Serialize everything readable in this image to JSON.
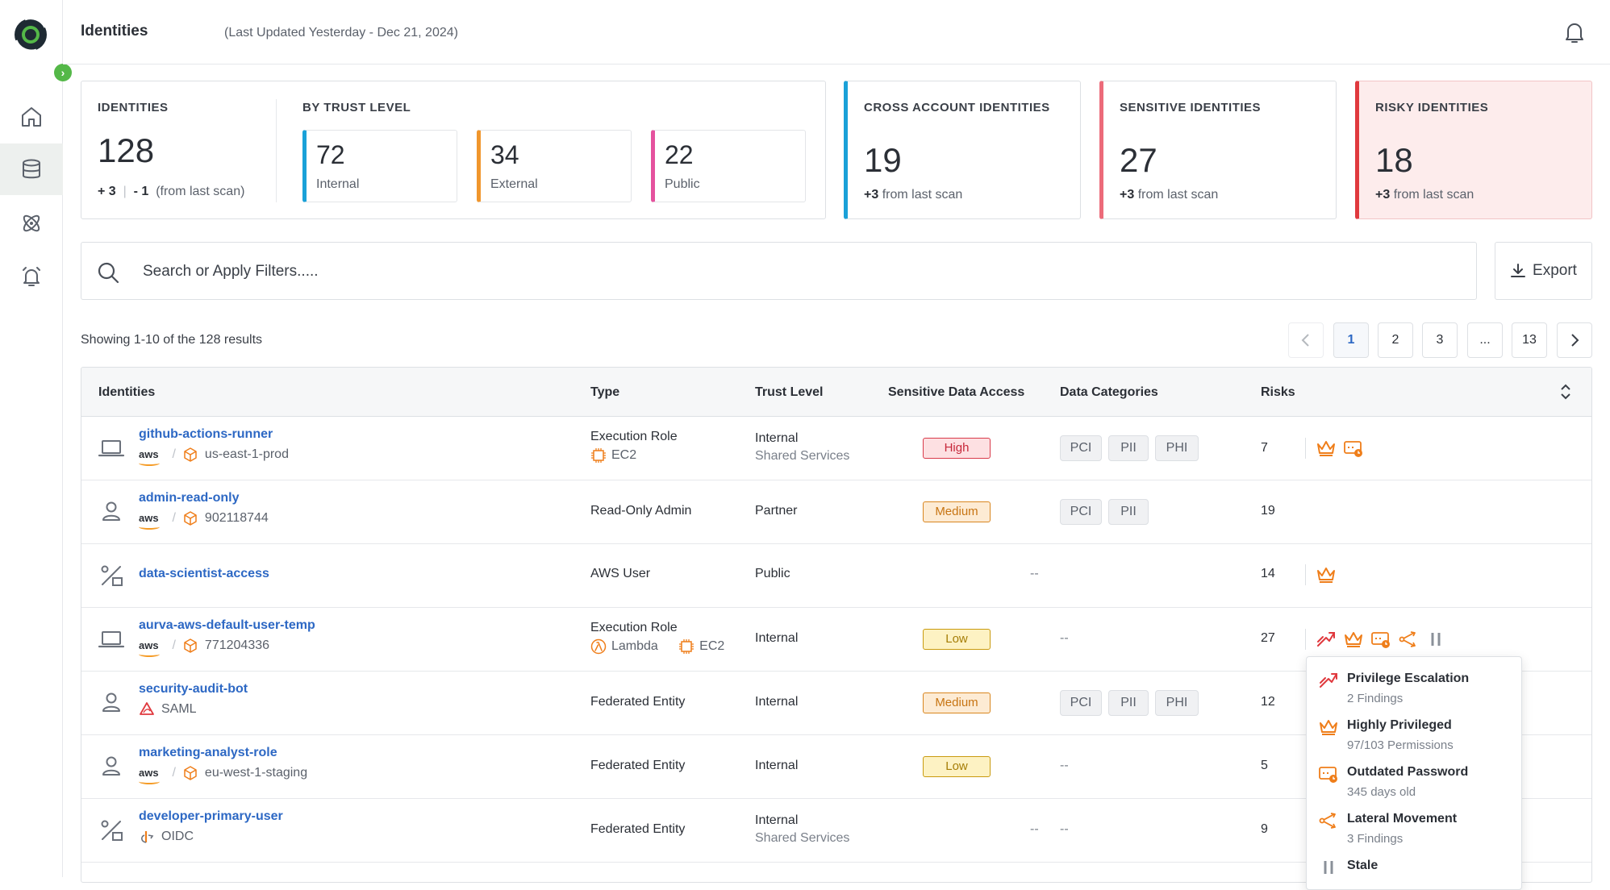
{
  "app": {
    "title": "Identities",
    "subtitle": "(Last Updated Yesterday - Dec 21, 2024)"
  },
  "colors": {
    "brand_green": "#54b848",
    "link_blue": "#2d68c4",
    "internal": "#1aa1d8",
    "external": "#f0962d",
    "public": "#e5529e",
    "cross_account": "#1aa1d8",
    "sensitive": "#ec6b7a",
    "risky": "#e0393e",
    "risk_icon": "#ef7e1a"
  },
  "nav": {
    "items": [
      {
        "name": "home",
        "icon": "home-icon"
      },
      {
        "name": "data-stores",
        "icon": "database-icon",
        "active": true
      },
      {
        "name": "identities",
        "icon": "atom-icon"
      },
      {
        "name": "alerts",
        "icon": "alarm-icon"
      }
    ]
  },
  "stats": {
    "identities": {
      "label": "IDENTITIES",
      "value": "128",
      "plus": "+ 3",
      "minus": "- 1",
      "note": "(from last scan)"
    },
    "by_trust_level": {
      "label": "BY TRUST LEVEL",
      "items": [
        {
          "value": "72",
          "name": "Internal"
        },
        {
          "value": "34",
          "name": "External"
        },
        {
          "value": "22",
          "name": "Public"
        }
      ]
    },
    "cross_account": {
      "label": "CROSS ACCOUNT IDENTITIES",
      "value": "19",
      "delta": "+3",
      "note": "from last scan"
    },
    "sensitive": {
      "label": "SENSITIVE IDENTITIES",
      "value": "27",
      "delta": "+3",
      "note": "from last scan"
    },
    "risky": {
      "label": "RISKY IDENTITIES",
      "value": "18",
      "delta": "+3",
      "note": "from last scan"
    }
  },
  "search": {
    "placeholder": "Search or Apply Filters....."
  },
  "export": {
    "label": "Export"
  },
  "results": {
    "text": "Showing 1-10 of the 128 results"
  },
  "pagination": {
    "pages": [
      "1",
      "2",
      "3",
      "...",
      "13"
    ],
    "current": "1"
  },
  "table": {
    "headers": {
      "identities": "Identities",
      "type": "Type",
      "trust": "Trust Level",
      "sensitive": "Sensitive Data Access",
      "categories": "Data Categories",
      "risks": "Risks"
    },
    "rows": [
      {
        "icon": "laptop-icon",
        "name": "github-actions-runner",
        "provider": "aws",
        "location": "us-east-1-prod",
        "type": "Execution Role",
        "services": [
          "EC2"
        ],
        "trust": "Internal",
        "trust_sub": "Shared Services",
        "sensitivity": "High",
        "categories": [
          "PCI",
          "PII",
          "PHI"
        ],
        "risks": "7"
      },
      {
        "icon": "user-icon",
        "name": "admin-read-only",
        "provider": "aws",
        "location": "902118744",
        "type": "Read-Only Admin",
        "trust": "Partner",
        "sensitivity": "Medium",
        "categories": [
          "PCI",
          "PII"
        ],
        "risks": "19"
      },
      {
        "icon": "percent-icon",
        "name": "data-scientist-access",
        "type": "AWS User",
        "trust": "Public",
        "sensitivity": "--",
        "risks": "14"
      },
      {
        "icon": "laptop-icon",
        "name": "aurva-aws-default-user-temp",
        "provider": "aws",
        "location": "771204336",
        "type": "Execution Role",
        "services": [
          "Lambda",
          "EC2"
        ],
        "trust": "Internal",
        "sensitivity": "Low",
        "categories_empty": "--",
        "risks": "27"
      },
      {
        "icon": "user-icon",
        "name": "security-audit-bot",
        "provider": "SAML",
        "type": "Federated Entity",
        "trust": "Internal",
        "sensitivity": "Medium",
        "categories": [
          "PCI",
          "PII",
          "PHI"
        ],
        "risks": "12"
      },
      {
        "icon": "user-icon",
        "name": "marketing-analyst-role",
        "provider": "aws",
        "location": "eu-west-1-staging",
        "type": "Federated Entity",
        "trust": "Internal",
        "sensitivity": "Low",
        "categories_empty": "--",
        "risks": "5"
      },
      {
        "icon": "percent-icon",
        "name": "developer-primary-user",
        "provider": "OIDC",
        "type": "Federated Entity",
        "trust": "Internal",
        "trust_sub": "Shared Services",
        "sensitivity": "--",
        "categories_empty": "--",
        "risks": "9"
      }
    ]
  },
  "risk_popover": {
    "items": [
      {
        "icon": "privilege-escalation-icon",
        "title": "Privilege Escalation",
        "sub": "2 Findings"
      },
      {
        "icon": "crown-icon",
        "title": "Highly Privileged",
        "sub": "97/103 Permissions"
      },
      {
        "icon": "outdated-password-icon",
        "title": "Outdated Password",
        "sub": "345 days old"
      },
      {
        "icon": "lateral-movement-icon",
        "title": "Lateral Movement",
        "sub": "3 Findings"
      },
      {
        "icon": "pause-icon",
        "title": "Stale",
        "sub": ""
      }
    ]
  }
}
